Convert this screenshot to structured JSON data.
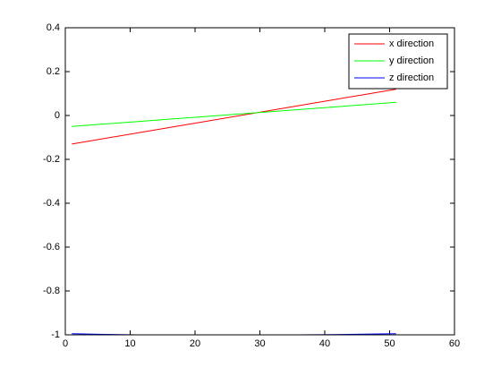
{
  "chart_data": {
    "type": "line",
    "x": [
      1,
      6,
      11,
      16,
      21,
      26,
      31,
      36,
      41,
      46,
      51
    ],
    "series": [
      {
        "name": "x direction",
        "color": "#ff0000",
        "values": [
          -0.13,
          -0.105,
          -0.08,
          -0.055,
          -0.03,
          -0.005,
          0.02,
          0.045,
          0.07,
          0.095,
          0.12
        ]
      },
      {
        "name": "y direction",
        "color": "#00ff00",
        "values": [
          -0.05,
          -0.039,
          -0.028,
          -0.017,
          -0.006,
          0.005,
          0.016,
          0.027,
          0.038,
          0.049,
          0.06
        ]
      },
      {
        "name": "z direction",
        "color": "#0000ff",
        "values": [
          -0.995,
          -0.998,
          -1,
          -1,
          -1,
          -1,
          -1,
          -1,
          -0.999,
          -0.997,
          -0.995
        ]
      }
    ],
    "xlim": [
      0,
      60
    ],
    "xticks": [
      0,
      10,
      20,
      30,
      40,
      50,
      60
    ],
    "ylim": [
      -1,
      0.4
    ],
    "yticks": [
      -1,
      -0.8,
      -0.6,
      -0.4,
      -0.2,
      0,
      0.2,
      0.4
    ],
    "legend": "upper-right"
  }
}
